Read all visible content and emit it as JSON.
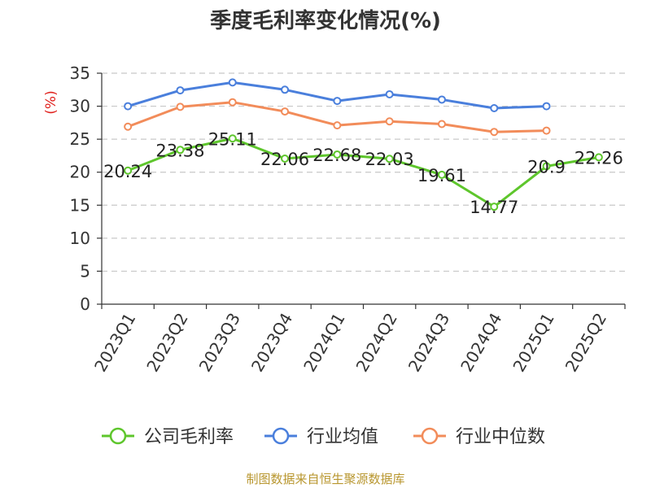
{
  "chart_data": {
    "type": "line",
    "title": "季度毛利率变化情况(%)",
    "ylabel": "(%)",
    "xlabel": "",
    "ylim": [
      0,
      35
    ],
    "yticks": [
      0,
      5,
      10,
      15,
      20,
      25,
      30,
      35
    ],
    "categories": [
      "2023Q1",
      "2023Q2",
      "2023Q3",
      "2023Q4",
      "2024Q1",
      "2024Q2",
      "2024Q3",
      "2024Q4",
      "2025Q1",
      "2025Q2"
    ],
    "grid": true,
    "legend_position": "bottom",
    "series": [
      {
        "name": "公司毛利率",
        "color": "#5ec62c",
        "values": [
          20.24,
          23.38,
          25.11,
          22.06,
          22.68,
          22.03,
          19.61,
          14.77,
          20.9,
          22.26
        ],
        "labels": [
          "20.24",
          "23.38",
          "25.11",
          "22.06",
          "22.68",
          "22.03",
          "19.61",
          "14.77",
          "20.9",
          "22.26"
        ]
      },
      {
        "name": "行业均值",
        "color": "#4a7fdc",
        "values": [
          30.0,
          32.4,
          33.6,
          32.5,
          30.8,
          31.8,
          31.0,
          29.7,
          30.0,
          null
        ]
      },
      {
        "name": "行业中位数",
        "color": "#f28c5a",
        "values": [
          26.9,
          29.9,
          30.6,
          29.2,
          27.1,
          27.7,
          27.3,
          26.1,
          26.3,
          null
        ]
      }
    ]
  },
  "source_text": "制图数据来自恒生聚源数据库"
}
